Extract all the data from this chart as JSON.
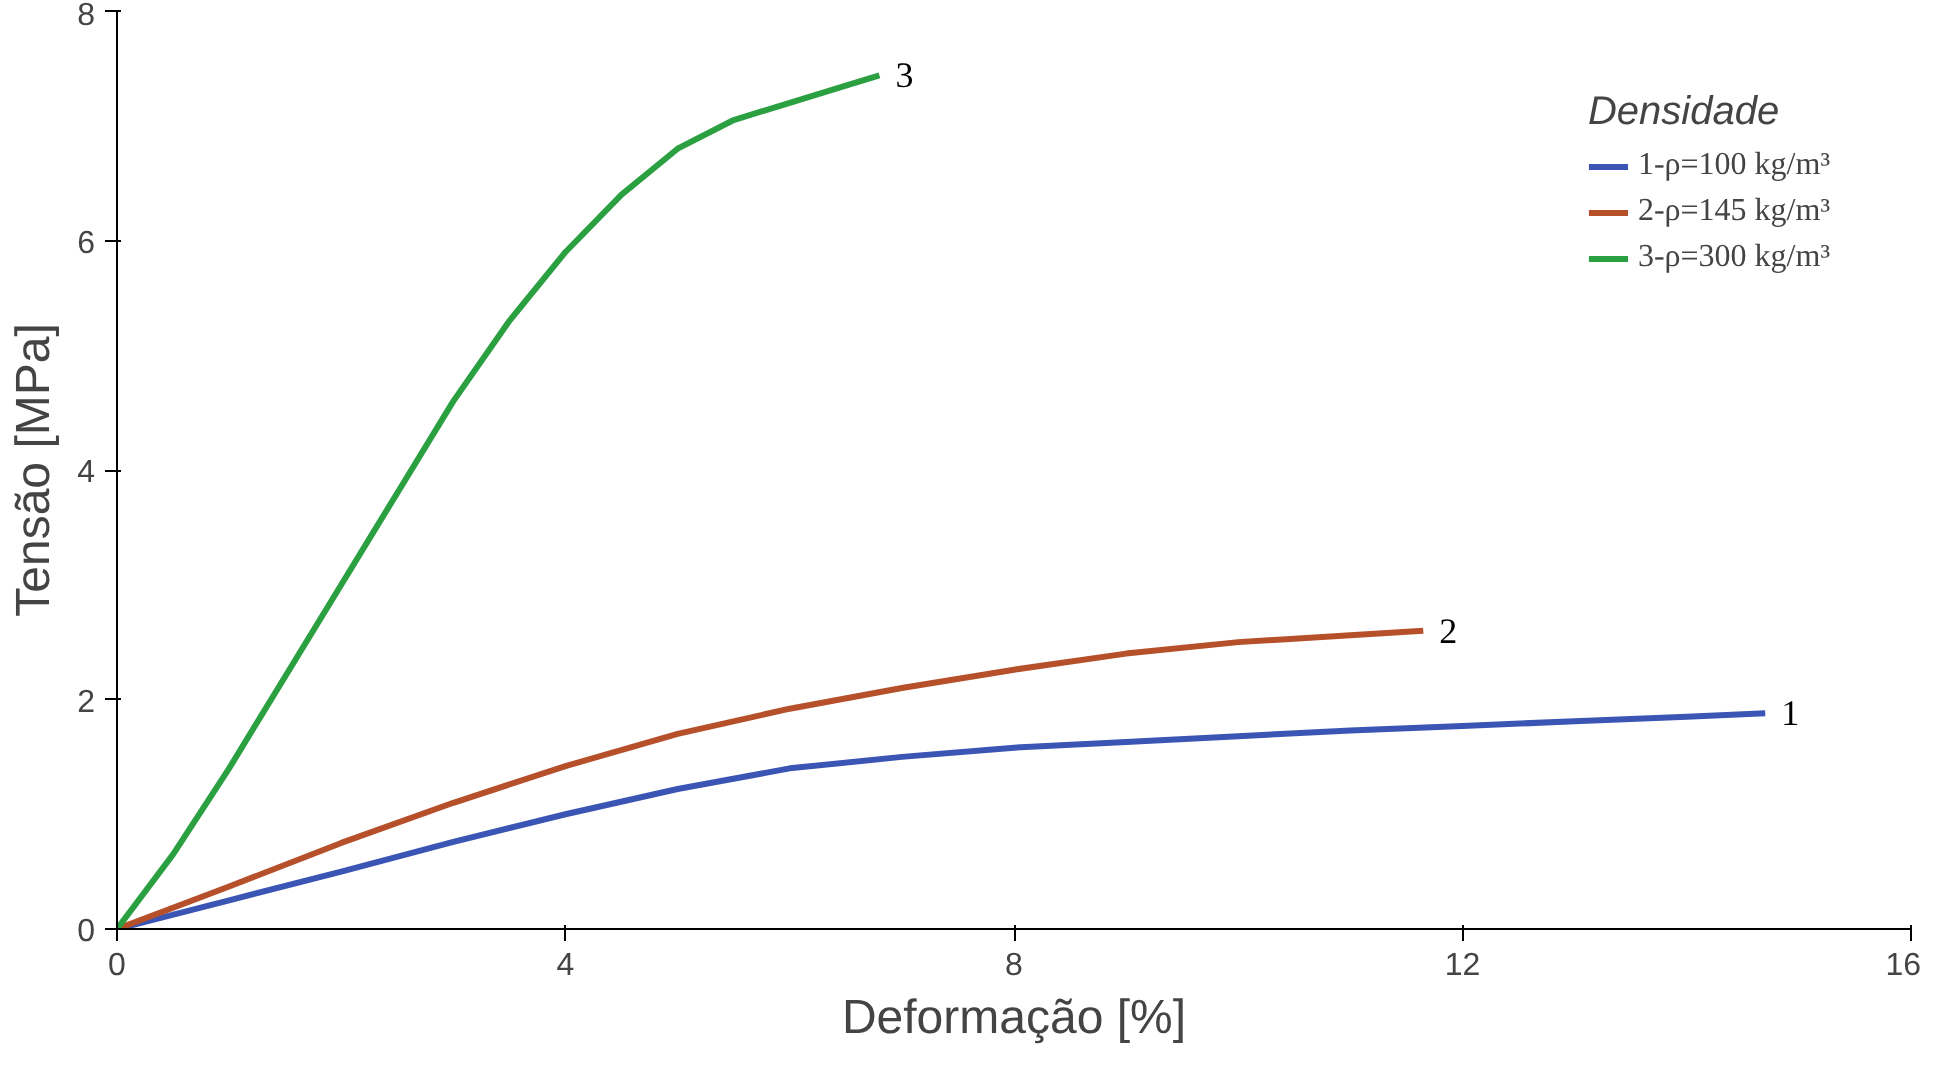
{
  "chart_data": {
    "type": "line",
    "xlabel": "Deformação [%]",
    "ylabel": "Tensão [MPa]",
    "legend_title": "Densidade",
    "xlim": [
      0,
      16
    ],
    "ylim": [
      0,
      8
    ],
    "xticks": [
      0,
      4,
      8,
      12,
      16
    ],
    "yticks": [
      0,
      2,
      4,
      6,
      8
    ],
    "grid": false,
    "legend": "top right",
    "marker": "none",
    "line_style": "solid",
    "series": [
      {
        "name": "1-ρ=100 kg/m³",
        "color": "#3a55b4",
        "x": [
          0,
          1,
          2,
          3,
          4,
          5,
          6,
          7,
          8,
          9,
          10,
          11,
          12,
          13,
          14,
          14.7
        ],
        "values": [
          0,
          0.25,
          0.5,
          0.76,
          1.0,
          1.22,
          1.4,
          1.5,
          1.58,
          1.63,
          1.68,
          1.73,
          1.77,
          1.81,
          1.85,
          1.88
        ]
      },
      {
        "name": "2-ρ=145 kg/m³",
        "color": "#b5502a",
        "x": [
          0,
          1,
          2,
          3,
          4,
          5,
          6,
          7,
          8,
          9,
          10,
          11,
          11.65
        ],
        "values": [
          0,
          0.37,
          0.75,
          1.1,
          1.42,
          1.7,
          1.92,
          2.1,
          2.26,
          2.4,
          2.5,
          2.56,
          2.6
        ]
      },
      {
        "name": "3-ρ=300 kg/m³",
        "color": "#2aa040",
        "x": [
          0,
          0.5,
          1,
          1.5,
          2,
          2.5,
          3,
          3.5,
          4,
          4.5,
          5,
          5.5,
          6,
          6.5,
          6.8
        ],
        "values": [
          0,
          0.65,
          1.4,
          2.2,
          3.0,
          3.8,
          4.6,
          5.3,
          5.9,
          6.4,
          6.8,
          7.05,
          7.2,
          7.35,
          7.44
        ]
      }
    ],
    "annotations": [
      {
        "text": "1",
        "x": 14.7,
        "y": 1.88
      },
      {
        "text": "2",
        "x": 11.65,
        "y": 2.6
      },
      {
        "text": "3",
        "x": 6.8,
        "y": 7.44
      }
    ]
  }
}
